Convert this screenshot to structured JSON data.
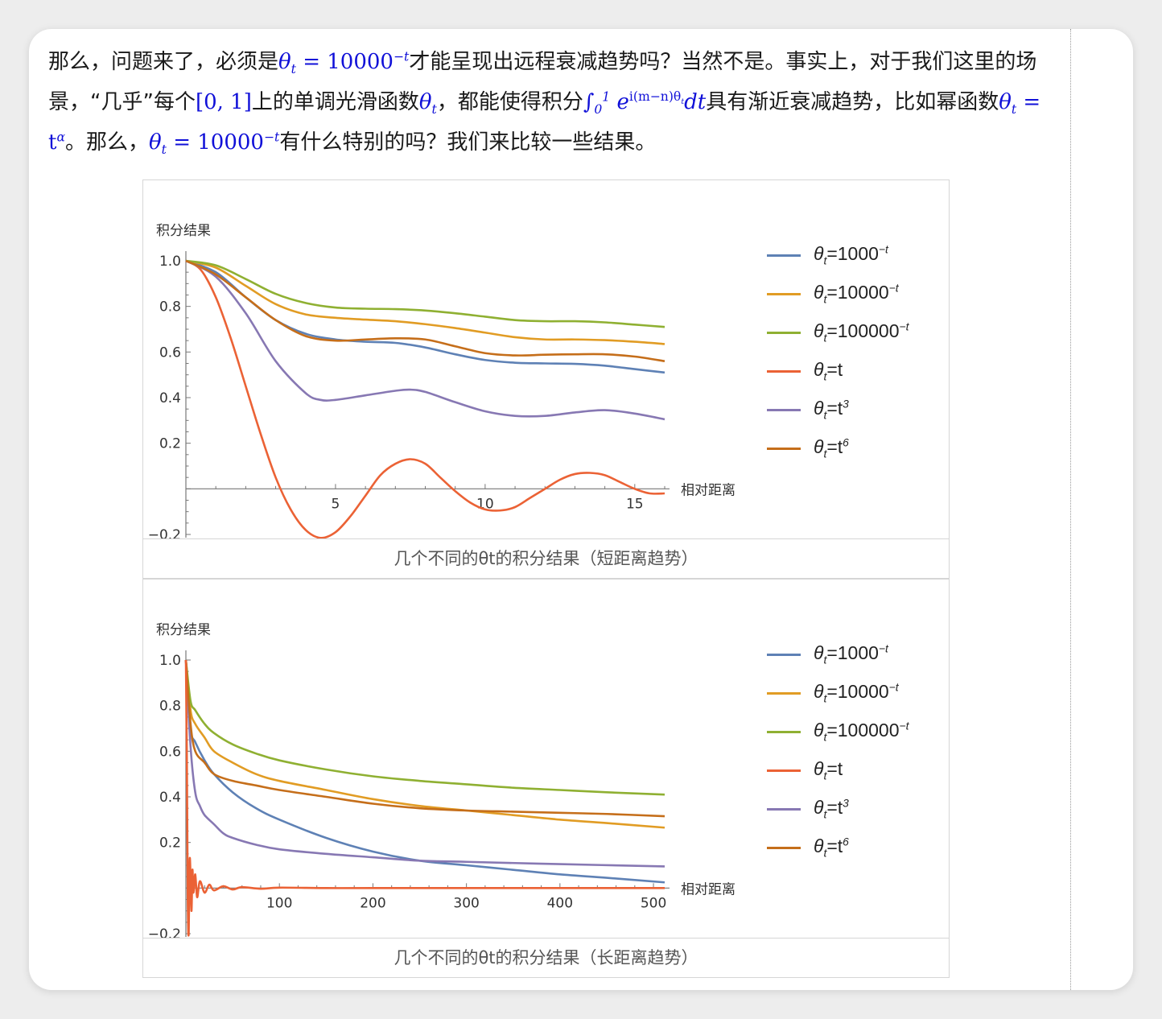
{
  "paragraph": {
    "p1": "那么，问题来了，必须是",
    "m1": "θ",
    "m1_sub": "t",
    "m1_eq": " = 10000",
    "m1_sup": "−t",
    "p2": "才能呈现出远程衰减趋势吗？当然不是。事实上，对于我们这里的场景，“几乎”每个",
    "m2": "[0, 1]",
    "p3": "上的单调光滑函数",
    "m3": "θ",
    "m3_sub": "t",
    "p4": "，都能使得积分",
    "m4_int": "∫",
    "m4_lo": "0",
    "m4_hi": "1",
    "m4_e": " e",
    "m4_sup": "i(m−n)θ",
    "m4_sup_sub": "t",
    "m4_dt": "dt",
    "p5": "具有渐近衰减趋势，比如幂函数",
    "m5": "θ",
    "m5_sub": "t",
    "m5_eq": " = t",
    "m5_sup": "α",
    "p6": "。那么，",
    "m6": "θ",
    "m6_sub": "t",
    "m6_eq": " = 10000",
    "m6_sup": "−t",
    "p7": "有什么特别的吗？我们来比较一些结果。"
  },
  "legend": [
    {
      "label": "θt=1000⁻ᵗ",
      "color": "#5e81b5"
    },
    {
      "label": "θt=10000⁻ᵗ",
      "color": "#e19c24"
    },
    {
      "label": "θt=100000⁻ᵗ",
      "color": "#8fb032"
    },
    {
      "label": "θt=t",
      "color": "#eb6235"
    },
    {
      "label": "θt=t³",
      "color": "#8778b3"
    },
    {
      "label": "θt=t⁶",
      "color": "#c56e1a"
    }
  ],
  "legend_parts": [
    {
      "base": "1000",
      "sup": "−t"
    },
    {
      "base": "10000",
      "sup": "−t"
    },
    {
      "base": "100000",
      "sup": "−t"
    },
    {
      "base": "t",
      "sup": ""
    },
    {
      "base": "t",
      "sup": "3"
    },
    {
      "base": "t",
      "sup": "6"
    }
  ],
  "captions": {
    "fig1": "几个不同的θt的积分结果（短距离趋势）",
    "fig2": "几个不同的θt的积分结果（长距离趋势）"
  },
  "chart_data": [
    {
      "type": "line",
      "ylabel": "积分结果",
      "xlabel": "相对距离",
      "xlim": [
        0,
        16
      ],
      "ylim": [
        -0.2,
        1.0
      ],
      "xticks": [
        5,
        10,
        15
      ],
      "yticks": [
        -0.2,
        0.2,
        0.4,
        0.6,
        0.8,
        1.0
      ],
      "series": [
        {
          "name": "θt=1000⁻ᵗ",
          "color": "#5e81b5",
          "x": [
            0,
            1,
            2,
            3,
            4,
            5,
            6,
            7,
            8,
            9,
            10,
            11,
            12,
            13,
            14,
            15,
            16
          ],
          "y": [
            1.0,
            0.95,
            0.84,
            0.74,
            0.68,
            0.655,
            0.645,
            0.64,
            0.62,
            0.59,
            0.565,
            0.553,
            0.55,
            0.548,
            0.54,
            0.525,
            0.51
          ]
        },
        {
          "name": "θt=10000⁻ᵗ",
          "color": "#e19c24",
          "x": [
            0,
            1,
            2,
            3,
            4,
            5,
            6,
            7,
            8,
            9,
            10,
            11,
            12,
            13,
            14,
            15,
            16
          ],
          "y": [
            1.0,
            0.97,
            0.89,
            0.81,
            0.765,
            0.75,
            0.742,
            0.735,
            0.722,
            0.705,
            0.685,
            0.665,
            0.655,
            0.655,
            0.652,
            0.645,
            0.635
          ]
        },
        {
          "name": "θt=100000⁻ᵗ",
          "color": "#8fb032",
          "x": [
            0,
            1,
            2,
            3,
            4,
            5,
            6,
            7,
            8,
            9,
            10,
            11,
            12,
            13,
            14,
            15,
            16
          ],
          "y": [
            1.0,
            0.98,
            0.92,
            0.855,
            0.815,
            0.795,
            0.79,
            0.788,
            0.782,
            0.77,
            0.755,
            0.74,
            0.735,
            0.735,
            0.73,
            0.72,
            0.71
          ]
        },
        {
          "name": "θt=t",
          "color": "#eb6235",
          "x": [
            0,
            0.5,
            1,
            1.5,
            2,
            2.5,
            3,
            3.5,
            4,
            4.5,
            5,
            5.5,
            6,
            6.5,
            7,
            7.5,
            8,
            8.5,
            9,
            9.5,
            10,
            10.5,
            11,
            11.5,
            12,
            12.5,
            13,
            13.5,
            14,
            14.5,
            15,
            15.5,
            16
          ],
          "y": [
            1.0,
            0.96,
            0.84,
            0.66,
            0.45,
            0.24,
            0.05,
            -0.09,
            -0.18,
            -0.215,
            -0.19,
            -0.12,
            -0.03,
            0.06,
            0.11,
            0.13,
            0.11,
            0.05,
            -0.01,
            -0.06,
            -0.09,
            -0.095,
            -0.08,
            -0.04,
            0.0,
            0.04,
            0.065,
            0.07,
            0.06,
            0.03,
            0.0,
            -0.02,
            -0.02
          ]
        },
        {
          "name": "θt=t³",
          "color": "#8778b3",
          "x": [
            0,
            1,
            2,
            3,
            4,
            4.5,
            5,
            6,
            7,
            7.5,
            8,
            9,
            10,
            11,
            12,
            13,
            14,
            15,
            16
          ],
          "y": [
            1.0,
            0.93,
            0.77,
            0.56,
            0.42,
            0.39,
            0.39,
            0.41,
            0.43,
            0.435,
            0.425,
            0.38,
            0.34,
            0.32,
            0.32,
            0.335,
            0.345,
            0.33,
            0.305
          ]
        },
        {
          "name": "θt=t⁶",
          "color": "#c56e1a",
          "x": [
            0,
            1,
            2,
            3,
            4,
            5,
            6,
            7,
            8,
            9,
            10,
            11,
            12,
            13,
            14,
            15,
            16
          ],
          "y": [
            1.0,
            0.94,
            0.84,
            0.74,
            0.67,
            0.65,
            0.655,
            0.66,
            0.655,
            0.625,
            0.595,
            0.585,
            0.588,
            0.59,
            0.59,
            0.58,
            0.56
          ]
        }
      ]
    },
    {
      "type": "line",
      "ylabel": "积分结果",
      "xlabel": "相对距离",
      "xlim": [
        0,
        512
      ],
      "ylim": [
        -0.2,
        1.0
      ],
      "xticks": [
        100,
        200,
        300,
        400,
        500
      ],
      "yticks": [
        -0.2,
        0.2,
        0.4,
        0.6,
        0.8,
        1.0
      ],
      "series": [
        {
          "name": "θt=1000⁻ᵗ",
          "color": "#5e81b5",
          "x": [
            0,
            5,
            10,
            20,
            30,
            50,
            75,
            100,
            150,
            200,
            250,
            300,
            350,
            400,
            450,
            512
          ],
          "y": [
            1.0,
            0.7,
            0.64,
            0.56,
            0.5,
            0.42,
            0.35,
            0.3,
            0.22,
            0.16,
            0.12,
            0.1,
            0.08,
            0.06,
            0.045,
            0.025
          ]
        },
        {
          "name": "θt=10000⁻ᵗ",
          "color": "#e19c24",
          "x": [
            0,
            5,
            10,
            20,
            30,
            50,
            75,
            100,
            150,
            200,
            250,
            300,
            350,
            400,
            450,
            512
          ],
          "y": [
            1.0,
            0.78,
            0.72,
            0.66,
            0.6,
            0.55,
            0.5,
            0.47,
            0.43,
            0.39,
            0.36,
            0.34,
            0.32,
            0.3,
            0.285,
            0.265
          ]
        },
        {
          "name": "θt=100000⁻ᵗ",
          "color": "#8fb032",
          "x": [
            0,
            5,
            10,
            20,
            30,
            50,
            75,
            100,
            150,
            200,
            250,
            300,
            350,
            400,
            450,
            512
          ],
          "y": [
            1.0,
            0.82,
            0.78,
            0.72,
            0.68,
            0.63,
            0.59,
            0.56,
            0.52,
            0.49,
            0.47,
            0.455,
            0.44,
            0.43,
            0.42,
            0.41
          ]
        },
        {
          "name": "θt=t",
          "color": "#eb6235",
          "x": [
            0,
            1,
            2,
            3,
            4,
            5,
            6,
            7,
            8,
            10,
            12,
            15,
            20,
            25,
            30,
            40,
            50,
            60,
            80,
            100,
            150,
            200,
            300,
            400,
            512
          ],
          "y": [
            1.0,
            0.6,
            -0.05,
            -0.2,
            0.12,
            0.05,
            -0.1,
            0.08,
            -0.02,
            0.06,
            -0.04,
            0.03,
            -0.02,
            0.015,
            -0.01,
            0.008,
            -0.006,
            0.004,
            -0.003,
            0.002,
            0.0,
            0.0,
            0.0,
            0.0,
            0.0
          ]
        },
        {
          "name": "θt=t³",
          "color": "#8778b3",
          "x": [
            0,
            5,
            10,
            15,
            20,
            30,
            40,
            50,
            75,
            100,
            150,
            200,
            250,
            300,
            400,
            512
          ],
          "y": [
            1.0,
            0.62,
            0.42,
            0.36,
            0.32,
            0.28,
            0.24,
            0.22,
            0.19,
            0.17,
            0.15,
            0.135,
            0.12,
            0.115,
            0.105,
            0.095
          ]
        },
        {
          "name": "θt=t⁶",
          "color": "#c56e1a",
          "x": [
            0,
            5,
            10,
            20,
            30,
            50,
            75,
            100,
            150,
            200,
            250,
            300,
            350,
            400,
            450,
            512
          ],
          "y": [
            1.0,
            0.72,
            0.6,
            0.55,
            0.5,
            0.47,
            0.45,
            0.43,
            0.4,
            0.37,
            0.35,
            0.34,
            0.335,
            0.33,
            0.325,
            0.315
          ]
        }
      ]
    }
  ]
}
